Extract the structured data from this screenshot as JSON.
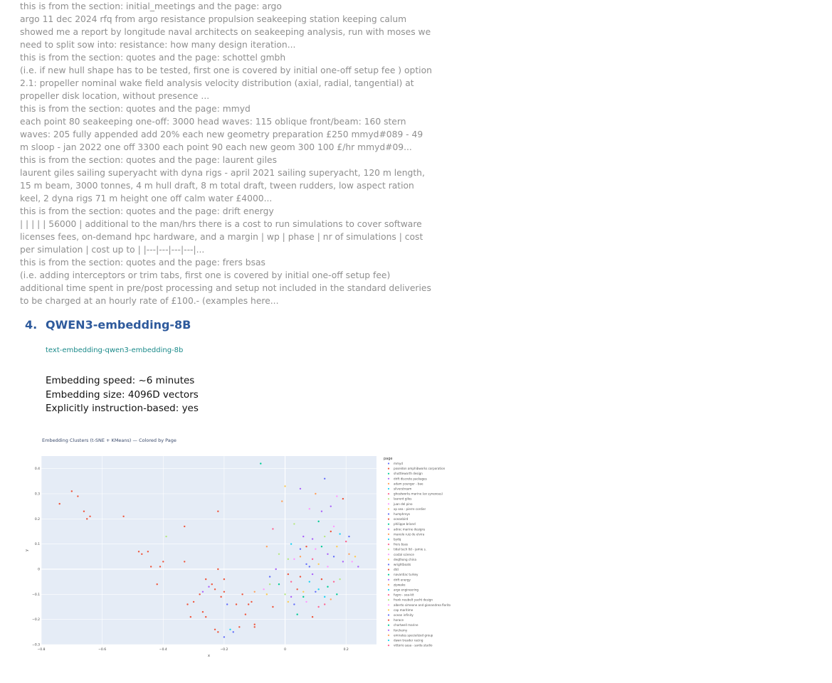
{
  "results": [
    {
      "header": "this is from the section: initial_meetings and the page: argo",
      "body": "argo 11 dec 2024 rfq from argo resistance propulsion seakeeping station keeping calum showed me a report by longitude naval architects on seakeeping analysis, run with moses we need to split sow into: resistance: how many design iteration..."
    },
    {
      "header": "this is from the section: quotes and the page: schottel gmbh",
      "body": "(i.e. if new hull shape has to be tested, first one is covered by initial one-off setup fee ) option 2.1: propeller nominal wake field analysis velocity distribution (axial, radial, tangential) at propeller disk location, without presence ..."
    },
    {
      "header": "this is from the section: quotes and the page: mmyd",
      "body": "each point 80 seakeeping one-off: 3000 head waves: 115 oblique front/beam: 160 stern waves: 205 fully appended add 20% each new geometry preparation £250 mmyd#089 - 49 m sloop - jan 2022 one off 3300 each point 90 each new geom 300 100 £/hr mmyd#09..."
    },
    {
      "header": "this is from the section: quotes and the page: laurent giles",
      "body": "laurent giles sailing superyacht with dyna rigs - april 2021 sailing superyacht, 120 m length, 15 m beam, 3000 tonnes, 4 m hull draft, 8 m total draft, tween rudders, low aspect ration keel, 2 dyna rigs 71 m height one off calm water £4000..."
    },
    {
      "header": "this is from the section: quotes and the page: drift energy",
      "body": "| | | | | 56000 | additional to the man/hrs there is a cost to run simulations to cover software licenses fees, on-demand hpc hardware, and a margin | wp | phase | nr of simulations | cost per simulation | cost up to | |---|---|---|---|..."
    },
    {
      "header": "this is from the section: quotes and the page: frers bsas",
      "body": "(i.e. adding interceptors or trim tabs, first one is covered by initial one-off setup fee) additional time spent in pre/post processing and setup not included in the standard deliveries to be charged at an hourly rate of £100.- (examples here..."
    }
  ],
  "section": {
    "number": "4.",
    "title": "QWEN3-embedding-8B"
  },
  "model_link": "text-embedding-qwen3-embedding-8b",
  "stats": {
    "speed": "Embedding speed: ~6 minutes",
    "size": "Embedding size: 4096D vectors",
    "instruction": "Explicitly instruction-based: yes"
  },
  "chart_data": {
    "type": "scatter",
    "title": "Embedding Clusters (t-SNE + KMeans) — Colored by Page",
    "xlabel": "x",
    "ylabel": "y",
    "xlim": [
      -0.8,
      0.3
    ],
    "ylim": [
      -0.3,
      0.45
    ],
    "xticks": [
      "−0.8",
      "−0.6",
      "−0.4",
      "−0.2",
      "0",
      "0.2"
    ],
    "yticks": [
      "0.4",
      "0.3",
      "0.2",
      "0.1",
      "0",
      "−0.1",
      "−0.2",
      "−0.3"
    ],
    "grid": true,
    "background": "#e5ecf6",
    "legend_title": "page",
    "legend_position": "right",
    "legend": [
      {
        "name": "mmyd",
        "color": "#636efa"
      },
      {
        "name": "poseidon amphibworks corporation",
        "color": "#ef553b"
      },
      {
        "name": "shuttleworth design",
        "color": "#00cc96"
      },
      {
        "name": "drift discrete packages",
        "color": "#ab63fa"
      },
      {
        "name": "adam younger - bae",
        "color": "#ffa15a"
      },
      {
        "name": "silverstream",
        "color": "#19d3f3"
      },
      {
        "name": "ghostworks marine (ex synexous)",
        "color": "#ff6692"
      },
      {
        "name": "laurent giles",
        "color": "#b6e880"
      },
      {
        "name": "juan del pino",
        "color": "#ff97ff"
      },
      {
        "name": "xp sea - pierre cordier",
        "color": "#fecb52"
      },
      {
        "name": "humphreys",
        "color": "#636efa"
      },
      {
        "name": "oceanbird",
        "color": "#ef553b"
      },
      {
        "name": "philippe briand",
        "color": "#00cc96"
      },
      {
        "name": "adroc marine designs",
        "color": "#ab63fa"
      },
      {
        "name": "manolo ruiz de elvira",
        "color": "#ffa15a"
      },
      {
        "name": "bydq",
        "color": "#19d3f3"
      },
      {
        "name": "frers bsas",
        "color": "#ff6692"
      },
      {
        "name": "tidal tech ltd - jamie s.",
        "color": "#b6e880"
      },
      {
        "name": "costal science",
        "color": "#ff97ff"
      },
      {
        "name": "deqthong china",
        "color": "#fecb52"
      },
      {
        "name": "wrightboats",
        "color": "#636efa"
      },
      {
        "name": "dtd",
        "color": "#ef553b"
      },
      {
        "name": "navantiac turkey",
        "color": "#00cc96"
      },
      {
        "name": "drift energy",
        "color": "#ab63fa"
      },
      {
        "name": "zipwake",
        "color": "#ffa15a"
      },
      {
        "name": "argo engineering",
        "color": "#19d3f3"
      },
      {
        "name": "fugro - sea-kit",
        "color": "#ff6692"
      },
      {
        "name": "frank neubelt yacht design",
        "color": "#b6e880"
      },
      {
        "name": "alberto simeone and gianandrea florito",
        "color": "#ff97ff"
      },
      {
        "name": "cap maritime",
        "color": "#fecb52"
      },
      {
        "name": "ocean infinity",
        "color": "#636efa"
      },
      {
        "name": "horace",
        "color": "#ef553b"
      },
      {
        "name": "chartwell marine",
        "color": "#00cc96"
      },
      {
        "name": "forchemy",
        "color": "#ab63fa"
      },
      {
        "name": "emirates specialized group",
        "color": "#ffa15a"
      },
      {
        "name": "dawn treader racing",
        "color": "#19d3f3"
      },
      {
        "name": "vittorio sasa - sarda studio",
        "color": "#ff6692"
      }
    ],
    "points": [
      [
        -0.74,
        0.26,
        1
      ],
      [
        -0.7,
        0.31,
        1
      ],
      [
        -0.68,
        0.29,
        1
      ],
      [
        -0.66,
        0.23,
        1
      ],
      [
        -0.65,
        0.2,
        1
      ],
      [
        -0.64,
        0.21,
        1
      ],
      [
        -0.53,
        0.21,
        1
      ],
      [
        -0.48,
        0.07,
        1
      ],
      [
        -0.47,
        0.06,
        1
      ],
      [
        -0.45,
        0.07,
        11
      ],
      [
        -0.44,
        0.01,
        1
      ],
      [
        -0.42,
        -0.06,
        1
      ],
      [
        -0.41,
        0.01,
        1
      ],
      [
        -0.4,
        0.03,
        11
      ],
      [
        -0.39,
        0.13,
        7
      ],
      [
        -0.33,
        0.17,
        1
      ],
      [
        -0.33,
        0.03,
        1
      ],
      [
        -0.32,
        -0.14,
        1
      ],
      [
        -0.31,
        -0.19,
        1
      ],
      [
        -0.3,
        -0.13,
        1
      ],
      [
        -0.28,
        -0.1,
        1
      ],
      [
        -0.27,
        -0.09,
        3
      ],
      [
        -0.27,
        -0.17,
        1
      ],
      [
        -0.26,
        -0.04,
        1
      ],
      [
        -0.26,
        -0.19,
        1
      ],
      [
        -0.25,
        -0.07,
        3
      ],
      [
        -0.24,
        -0.06,
        1
      ],
      [
        -0.23,
        -0.08,
        1
      ],
      [
        -0.23,
        -0.24,
        1
      ],
      [
        -0.22,
        0.23,
        1
      ],
      [
        -0.22,
        -0.25,
        1
      ],
      [
        -0.22,
        0.0,
        1
      ],
      [
        -0.21,
        -0.11,
        1
      ],
      [
        -0.2,
        -0.04,
        1
      ],
      [
        -0.2,
        -0.09,
        1
      ],
      [
        -0.2,
        -0.27,
        0
      ],
      [
        -0.19,
        -0.14,
        0
      ],
      [
        -0.18,
        -0.24,
        5
      ],
      [
        -0.17,
        -0.25,
        0
      ],
      [
        -0.16,
        -0.14,
        1
      ],
      [
        -0.15,
        -0.23,
        1
      ],
      [
        -0.13,
        -0.18,
        1
      ],
      [
        -0.14,
        -0.1,
        1
      ],
      [
        -0.12,
        -0.14,
        1
      ],
      [
        -0.11,
        -0.13,
        1
      ],
      [
        -0.1,
        -0.22,
        1
      ],
      [
        -0.1,
        -0.09,
        4
      ],
      [
        -0.1,
        -0.23,
        1
      ],
      [
        -0.08,
        0.42,
        2
      ],
      [
        -0.06,
        0.09,
        4
      ],
      [
        -0.07,
        -0.08,
        8
      ],
      [
        -0.06,
        -0.1,
        9
      ],
      [
        -0.05,
        -0.06,
        7
      ],
      [
        -0.04,
        0.16,
        6
      ],
      [
        -0.04,
        -0.15,
        1
      ],
      [
        -0.02,
        0.06,
        7
      ],
      [
        -0.02,
        -0.06,
        2
      ],
      [
        -0.01,
        0.27,
        4
      ],
      [
        0.0,
        0.33,
        9
      ],
      [
        0.01,
        0.04,
        7
      ],
      [
        0.01,
        -0.02,
        1
      ],
      [
        0.02,
        0.1,
        5
      ],
      [
        0.02,
        -0.11,
        3
      ],
      [
        0.02,
        -0.05,
        6
      ],
      [
        0.03,
        0.04,
        8
      ],
      [
        0.03,
        -0.14,
        0
      ],
      [
        0.03,
        0.18,
        7
      ],
      [
        0.04,
        -0.18,
        2
      ],
      [
        0.05,
        0.32,
        3
      ],
      [
        0.05,
        0.08,
        0
      ],
      [
        0.05,
        -0.03,
        1
      ],
      [
        0.06,
        0.13,
        3
      ],
      [
        0.06,
        -0.09,
        9
      ],
      [
        0.07,
        -0.13,
        8
      ],
      [
        0.07,
        0.02,
        0
      ],
      [
        0.08,
        0.24,
        8
      ],
      [
        0.08,
        -0.05,
        5
      ],
      [
        0.09,
        0.12,
        3
      ],
      [
        0.09,
        -0.19,
        1
      ],
      [
        0.09,
        0.04,
        6
      ],
      [
        0.1,
        0.3,
        4
      ],
      [
        0.1,
        -0.09,
        0
      ],
      [
        0.1,
        0.08,
        8
      ],
      [
        0.11,
        0.19,
        2
      ],
      [
        0.11,
        -0.15,
        6
      ],
      [
        0.11,
        0.02,
        9
      ],
      [
        0.12,
        0.23,
        3
      ],
      [
        0.12,
        -0.04,
        1
      ],
      [
        0.13,
        0.36,
        0
      ],
      [
        0.13,
        0.13,
        7
      ],
      [
        0.13,
        -0.11,
        5
      ],
      [
        0.14,
        0.06,
        3
      ],
      [
        0.14,
        -0.07,
        2
      ],
      [
        0.15,
        0.15,
        1
      ],
      [
        0.15,
        0.25,
        3
      ],
      [
        0.15,
        -0.12,
        4
      ],
      [
        0.16,
        0.05,
        0
      ],
      [
        0.16,
        0.17,
        8
      ],
      [
        0.16,
        -0.05,
        6
      ],
      [
        0.17,
        0.29,
        8
      ],
      [
        0.17,
        0.09,
        9
      ],
      [
        0.17,
        -0.1,
        2
      ],
      [
        0.18,
        0.14,
        5
      ],
      [
        0.18,
        -0.04,
        7
      ],
      [
        0.19,
        0.03,
        3
      ],
      [
        0.19,
        0.28,
        1
      ],
      [
        0.2,
        0.11,
        6
      ],
      [
        0.21,
        0.06,
        4
      ],
      [
        0.21,
        0.13,
        0
      ],
      [
        0.22,
        0.03,
        8
      ],
      [
        0.23,
        0.05,
        9
      ],
      [
        0.24,
        0.01,
        3
      ],
      [
        0.08,
        0.01,
        0
      ],
      [
        0.09,
        -0.02,
        3
      ],
      [
        0.04,
        -0.08,
        1
      ],
      [
        0.06,
        -0.11,
        2
      ],
      [
        0.11,
        -0.08,
        5
      ],
      [
        0.13,
        -0.14,
        6
      ],
      [
        0.01,
        -0.13,
        9
      ],
      [
        0.0,
        -0.1,
        7
      ],
      [
        -0.03,
        0.0,
        3
      ],
      [
        0.12,
        0.09,
        2
      ],
      [
        0.05,
        0.05,
        4
      ],
      [
        0.14,
        0.01,
        8
      ],
      [
        -0.05,
        -0.03,
        0
      ],
      [
        0.07,
        0.09,
        1
      ]
    ]
  }
}
